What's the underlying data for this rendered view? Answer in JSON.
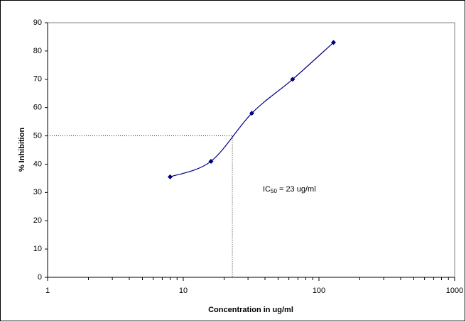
{
  "chart_data": {
    "type": "line",
    "x_label": "Concentration in ug/ml",
    "y_label": "% Inhibition",
    "series": [
      {
        "name": "Inhibition",
        "color": "#000080",
        "x": [
          8,
          16,
          32,
          64,
          128
        ],
        "values": [
          35.5,
          41,
          58,
          70,
          83
        ]
      }
    ],
    "xlim": [
      1,
      1000
    ],
    "xticks": [
      1,
      10,
      100,
      1000
    ],
    "xscale": "log",
    "xminorticks": [
      2,
      3,
      4,
      5,
      6,
      7,
      8,
      9,
      20,
      30,
      40,
      50,
      60,
      70,
      80,
      90,
      200,
      300,
      400,
      500,
      600,
      700,
      800,
      900
    ],
    "ylim": [
      0,
      90
    ],
    "yticks": [
      0,
      10,
      20,
      30,
      40,
      50,
      60,
      70,
      80,
      90
    ],
    "grid": false,
    "ic50": {
      "x": 23,
      "y": 50
    },
    "annotation": {
      "prefix": "IC",
      "subscript": "50",
      "text": " = 23 ug/ml"
    }
  }
}
